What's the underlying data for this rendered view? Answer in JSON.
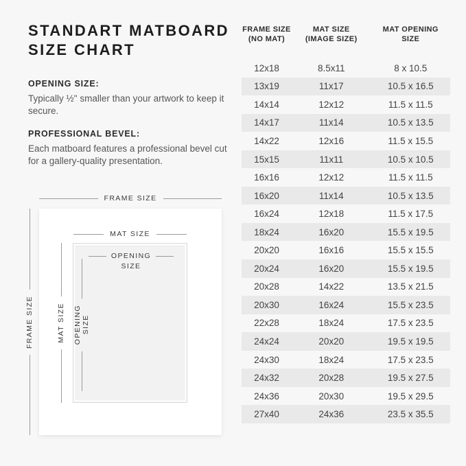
{
  "title": {
    "line1": "STANDART MATBOARD",
    "line2": "SIZE CHART"
  },
  "sections": {
    "opening": {
      "heading": "OPENING SIZE:",
      "body": "Typically ½\" smaller than your artwork to keep it secure."
    },
    "bevel": {
      "heading": "PROFESSIONAL BEVEL:",
      "body": "Each matboard features a professional bevel cut for a gallery-quality presentation."
    }
  },
  "diagram": {
    "frame_size_label": "FRAME SIZE",
    "mat_size_label": "MAT SIZE",
    "opening_size_line1": "OPENING",
    "opening_size_line2": "SIZE"
  },
  "table": {
    "columns": [
      {
        "line1": "FRAME SIZE",
        "line2": "(NO MAT)"
      },
      {
        "line1": "MAT SIZE",
        "line2": "(IMAGE SIZE)"
      },
      {
        "line1": "MAT OPENING",
        "line2": "SIZE"
      }
    ]
  },
  "colors": {
    "background": "#f7f7f7",
    "row_stripe": "#e9e9e9",
    "frame_fill": "#ffffff",
    "opening_fill": "#f2f2f2",
    "diagram_line": "#9a9a9a",
    "title_text": "#1d1d1d",
    "body_text": "#565656"
  },
  "chart_data": {
    "type": "table",
    "title": "STANDART MATBOARD SIZE CHART",
    "columns": [
      "FRAME SIZE (NO MAT)",
      "MAT SIZE (IMAGE SIZE)",
      "MAT OPENING SIZE"
    ],
    "rows": [
      [
        "12x18",
        "8.5x11",
        "8 x 10.5"
      ],
      [
        "13x19",
        "11x17",
        "10.5 x 16.5"
      ],
      [
        "14x14",
        "12x12",
        "11.5 x 11.5"
      ],
      [
        "14x17",
        "11x14",
        "10.5 x 13.5"
      ],
      [
        "14x22",
        "12x16",
        "11.5 x 15.5"
      ],
      [
        "15x15",
        "11x11",
        "10.5 x 10.5"
      ],
      [
        "16x16",
        "12x12",
        "11.5 x 11.5"
      ],
      [
        "16x20",
        "11x14",
        "10.5 x 13.5"
      ],
      [
        "16x24",
        "12x18",
        "11.5 x 17.5"
      ],
      [
        "18x24",
        "16x20",
        "15.5 x 19.5"
      ],
      [
        "20x20",
        "16x16",
        "15.5 x 15.5"
      ],
      [
        "20x24",
        "16x20",
        "15.5 x 19.5"
      ],
      [
        "20x28",
        "14x22",
        "13.5 x 21.5"
      ],
      [
        "20x30",
        "16x24",
        "15.5 x 23.5"
      ],
      [
        "22x28",
        "18x24",
        "17.5 x 23.5"
      ],
      [
        "24x24",
        "20x20",
        "19.5 x 19.5"
      ],
      [
        "24x30",
        "18x24",
        "17.5 x 23.5"
      ],
      [
        "24x32",
        "20x28",
        "19.5 x 27.5"
      ],
      [
        "24x36",
        "20x30",
        "19.5 x 29.5"
      ],
      [
        "27x40",
        "24x36",
        "23.5 x 35.5"
      ]
    ]
  }
}
